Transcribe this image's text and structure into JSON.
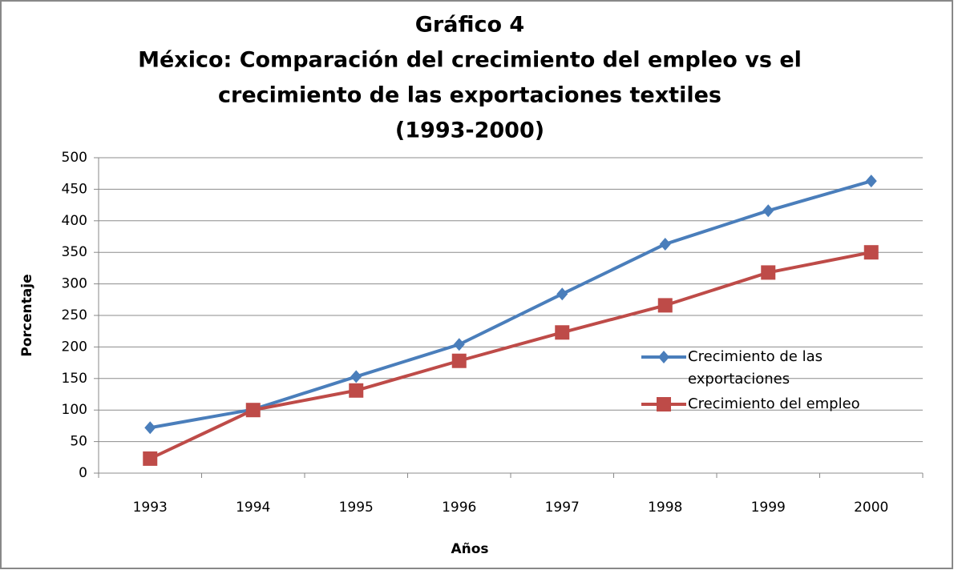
{
  "chart_data": {
    "type": "line",
    "title": "Gráfico 4",
    "subtitle": [
      "México: Comparación del crecimiento del empleo vs el",
      "crecimiento de las exportaciones textiles",
      "(1993-2000)"
    ],
    "x_label": "Años",
    "y_label": "Porcentaje",
    "categories": [
      "1993",
      "1994",
      "1995",
      "1996",
      "1997",
      "1998",
      "1999",
      "2000"
    ],
    "series": [
      {
        "name": "Crecimiento de las exportaciones",
        "color": "#4a7ebb",
        "marker": "diamond",
        "values": [
          72,
          101,
          153,
          204,
          284,
          363,
          416,
          463
        ]
      },
      {
        "name": "Crecimiento del empleo",
        "color": "#be4b48",
        "marker": "square",
        "values": [
          23,
          100,
          131,
          178,
          223,
          266,
          318,
          350
        ]
      }
    ],
    "ylim": [
      0,
      500
    ],
    "yticks": [
      0,
      50,
      100,
      150,
      200,
      250,
      300,
      350,
      400,
      450,
      500
    ],
    "grid": true,
    "legend": "right"
  }
}
